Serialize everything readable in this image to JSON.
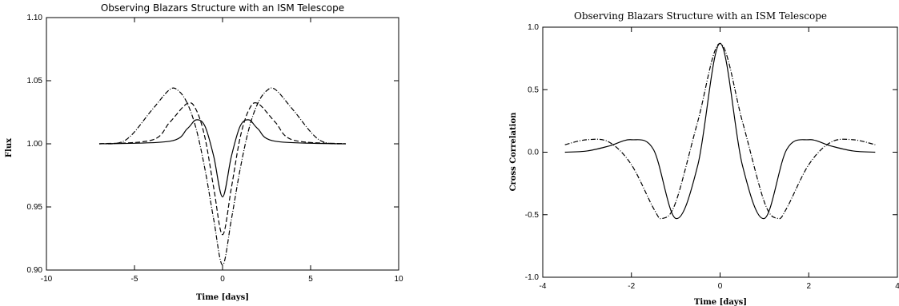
{
  "chart_data": [
    {
      "type": "line",
      "title": "Observing Blazars Structure with an ISM Telescope",
      "xlabel": "Time [days]",
      "ylabel": "Flux",
      "xlim": [
        -10,
        10
      ],
      "ylim": [
        0.9,
        1.1
      ],
      "xticks": [
        "-10",
        "-5",
        "0",
        "5",
        "10"
      ],
      "yticks": [
        "0.90",
        "0.95",
        "1.00",
        "1.05",
        "1.10"
      ],
      "series": [
        {
          "style": "solid",
          "x": [
            -7,
            -3,
            -2,
            -1.5,
            -1,
            -0.5,
            0,
            0.5,
            1,
            1.5,
            2,
            3,
            7
          ],
          "y": [
            1.0,
            1.002,
            1.012,
            1.019,
            1.014,
            0.99,
            0.958,
            0.99,
            1.014,
            1.019,
            1.012,
            1.002,
            1.0
          ]
        },
        {
          "style": "dashed",
          "x": [
            -7,
            -4,
            -3,
            -2,
            -1.5,
            -1,
            -0.5,
            0,
            0.5,
            1,
            1.5,
            2,
            3,
            4,
            7
          ],
          "y": [
            1.0,
            1.003,
            1.017,
            1.032,
            1.027,
            1.005,
            0.965,
            0.928,
            0.965,
            1.005,
            1.027,
            1.032,
            1.017,
            1.003,
            1.0
          ]
        },
        {
          "style": "dashdot",
          "x": [
            -7,
            -5.5,
            -4,
            -3,
            -2.5,
            -2,
            -1.5,
            -1,
            -0.5,
            0,
            0.5,
            1,
            1.5,
            2,
            2.5,
            3,
            4,
            5.5,
            7
          ],
          "y": [
            1.0,
            1.003,
            1.027,
            1.043,
            1.042,
            1.032,
            1.012,
            0.98,
            0.94,
            0.904,
            0.94,
            0.98,
            1.012,
            1.032,
            1.042,
            1.043,
            1.027,
            1.003,
            1.0
          ]
        }
      ]
    },
    {
      "type": "line",
      "title": "Observing Blazars Structure with an ISM Telescope",
      "xlabel": "Time [days]",
      "ylabel": "Cross Correlation",
      "xlim": [
        -4,
        4
      ],
      "ylim": [
        -1.0,
        1.0
      ],
      "xticks": [
        "-4",
        "-2",
        "0",
        "2",
        "4"
      ],
      "yticks": [
        "-1.0",
        "-0.5",
        "0.0",
        "0.5",
        "1.0"
      ],
      "series": [
        {
          "style": "solid",
          "x": [
            -3.5,
            -3,
            -2.5,
            -2,
            -1.5,
            -1,
            -0.5,
            0,
            0.5,
            1,
            1.5,
            2,
            2.5,
            3,
            3.5
          ],
          "y": [
            0.0,
            0.01,
            0.05,
            0.1,
            0.02,
            -0.53,
            -0.1,
            0.87,
            -0.1,
            -0.53,
            0.02,
            0.1,
            0.05,
            0.01,
            0.0
          ]
        },
        {
          "style": "dashdot",
          "x": [
            -3.5,
            -3,
            -2.5,
            -2,
            -1.5,
            -1.3,
            -1,
            -0.5,
            0,
            0.5,
            1,
            1.3,
            1.5,
            2,
            2.5,
            3,
            3.5
          ],
          "y": [
            0.06,
            0.1,
            0.08,
            -0.1,
            -0.45,
            -0.53,
            -0.4,
            0.25,
            0.87,
            0.25,
            -0.4,
            -0.53,
            -0.45,
            -0.1,
            0.08,
            0.1,
            0.06
          ]
        }
      ]
    }
  ]
}
